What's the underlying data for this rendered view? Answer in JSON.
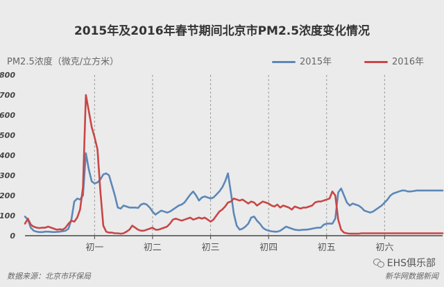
{
  "chart_data": {
    "type": "line",
    "title": "2015年及2016年春节期间北京市PM2.5浓度变化情况",
    "ylabel": "PM2.5浓度（微克/立方米）",
    "xlabel": "",
    "ylim": [
      0,
      800
    ],
    "yticks": [
      0,
      100,
      200,
      300,
      400,
      500,
      600,
      700,
      800
    ],
    "xlim": [
      0,
      144
    ],
    "xticks": [
      {
        "x": 24,
        "label": "初一"
      },
      {
        "x": 44,
        "label": "初二"
      },
      {
        "x": 64,
        "label": "初三"
      },
      {
        "x": 84,
        "label": "初四"
      },
      {
        "x": 104,
        "label": "初五"
      },
      {
        "x": 124,
        "label": "初六"
      }
    ],
    "grid": "vertical-dashed",
    "legend_position": "top-right",
    "series": [
      {
        "name": "2015年",
        "color": "#5b87b8",
        "x": [
          0,
          1,
          2,
          3,
          4,
          5,
          6,
          7,
          8,
          10,
          12,
          14,
          15,
          16,
          17,
          18,
          19,
          20,
          21,
          22,
          23,
          24,
          25,
          26,
          27,
          28,
          29,
          30,
          31,
          32,
          33,
          34,
          35,
          36,
          37,
          38,
          39,
          40,
          41,
          42,
          43,
          44,
          45,
          46,
          47,
          48,
          49,
          50,
          51,
          52,
          53,
          54,
          55,
          56,
          57,
          58,
          59,
          60,
          61,
          62,
          63,
          64,
          65,
          66,
          67,
          68,
          69,
          70,
          71,
          72,
          73,
          74,
          75,
          76,
          77,
          78,
          79,
          80,
          81,
          82,
          83,
          84,
          85,
          86,
          87,
          88,
          89,
          90,
          91,
          92,
          93,
          94,
          95,
          96,
          97,
          98,
          99,
          100,
          101,
          102,
          103,
          104,
          105,
          106,
          107,
          108,
          109,
          110,
          111,
          112,
          113,
          114,
          115,
          116,
          117,
          118,
          119,
          120,
          121,
          122,
          123,
          124,
          125,
          126,
          127,
          128,
          129,
          130,
          131,
          132,
          133,
          134,
          135,
          136,
          137,
          138,
          139,
          140,
          141,
          142,
          143,
          144
        ],
        "y": [
          95,
          80,
          40,
          25,
          20,
          18,
          18,
          20,
          20,
          18,
          20,
          25,
          35,
          80,
          170,
          185,
          180,
          200,
          410,
          330,
          270,
          260,
          265,
          280,
          305,
          310,
          300,
          250,
          200,
          140,
          135,
          150,
          145,
          140,
          140,
          140,
          138,
          155,
          160,
          155,
          140,
          120,
          105,
          115,
          125,
          120,
          115,
          120,
          130,
          140,
          150,
          155,
          165,
          185,
          205,
          220,
          200,
          175,
          190,
          195,
          190,
          185,
          190,
          205,
          220,
          240,
          270,
          310,
          215,
          110,
          50,
          30,
          35,
          45,
          60,
          90,
          95,
          75,
          60,
          40,
          30,
          25,
          22,
          20,
          20,
          25,
          35,
          45,
          40,
          35,
          30,
          28,
          28,
          30,
          30,
          32,
          35,
          38,
          40,
          40,
          55,
          60,
          60,
          60,
          85,
          215,
          235,
          200,
          165,
          150,
          160,
          155,
          150,
          140,
          125,
          120,
          115,
          120,
          130,
          140,
          150,
          165,
          180,
          200,
          210,
          215,
          220,
          225,
          225,
          220,
          220,
          222,
          225,
          225,
          225,
          225,
          225,
          225,
          225,
          225,
          225,
          225
        ]
      },
      {
        "name": "2016年",
        "color": "#c94545",
        "x": [
          0,
          1,
          2,
          3,
          4,
          5,
          6,
          7,
          8,
          9,
          10,
          11,
          12,
          13,
          14,
          15,
          16,
          17,
          18,
          19,
          20,
          21,
          22,
          23,
          24,
          25,
          26,
          27,
          28,
          29,
          30,
          31,
          32,
          33,
          34,
          35,
          36,
          37,
          38,
          39,
          40,
          41,
          42,
          43,
          44,
          45,
          46,
          47,
          48,
          49,
          50,
          51,
          52,
          53,
          54,
          55,
          56,
          57,
          58,
          59,
          60,
          61,
          62,
          63,
          64,
          65,
          66,
          67,
          68,
          69,
          70,
          71,
          72,
          73,
          74,
          75,
          76,
          77,
          78,
          79,
          80,
          81,
          82,
          83,
          84,
          85,
          86,
          87,
          88,
          89,
          90,
          91,
          92,
          93,
          94,
          95,
          96,
          97,
          98,
          99,
          100,
          101,
          102,
          103,
          104,
          105,
          106,
          107,
          108,
          109,
          110,
          111,
          112,
          113,
          114,
          115,
          116,
          117,
          118,
          119,
          120,
          121,
          122,
          123,
          124,
          125,
          126,
          127,
          128,
          129,
          130,
          131,
          132,
          133,
          134,
          135,
          136,
          137,
          138,
          139,
          140,
          141,
          142,
          143,
          144
        ],
        "y": [
          60,
          85,
          55,
          45,
          40,
          38,
          40,
          40,
          45,
          40,
          35,
          30,
          32,
          30,
          40,
          60,
          75,
          70,
          90,
          130,
          240,
          700,
          620,
          540,
          490,
          430,
          220,
          50,
          20,
          15,
          15,
          12,
          12,
          10,
          12,
          20,
          30,
          50,
          40,
          30,
          25,
          25,
          30,
          35,
          40,
          30,
          30,
          35,
          40,
          45,
          60,
          80,
          85,
          80,
          75,
          80,
          85,
          90,
          80,
          85,
          90,
          85,
          90,
          80,
          70,
          80,
          100,
          120,
          130,
          145,
          165,
          170,
          185,
          180,
          175,
          180,
          170,
          160,
          170,
          165,
          150,
          160,
          170,
          165,
          160,
          150,
          145,
          155,
          140,
          150,
          145,
          140,
          130,
          145,
          140,
          135,
          140,
          140,
          145,
          150,
          165,
          170,
          170,
          175,
          180,
          185,
          220,
          200,
          80,
          30,
          15,
          12,
          10,
          10,
          10,
          10,
          12,
          12,
          12,
          12,
          12,
          12,
          12,
          12,
          12,
          12,
          12,
          12,
          12,
          12,
          12,
          12,
          12,
          12,
          12,
          12,
          12,
          12,
          12,
          12,
          12,
          12,
          12,
          12,
          12
        ]
      }
    ]
  },
  "footer": {
    "source": "数据来源：北京市环保局",
    "credit": "新华网数据新闻",
    "badge": "EHS俱乐部",
    "badge_icon": "wechat-icon"
  }
}
